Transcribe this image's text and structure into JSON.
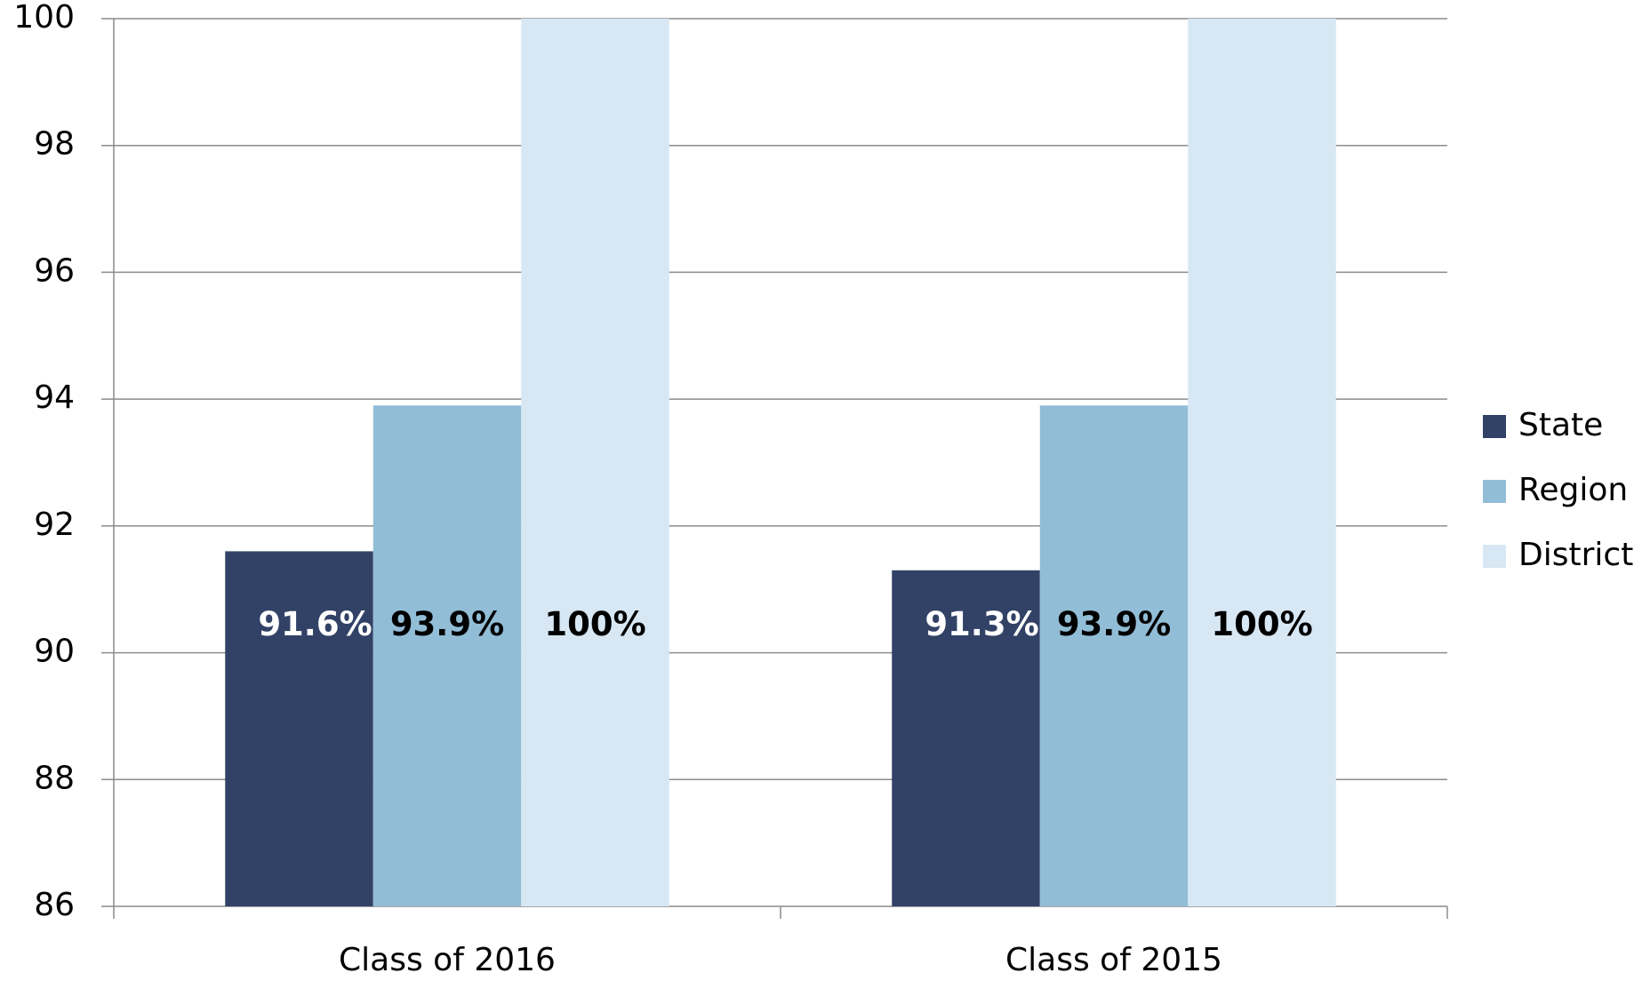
{
  "chart_data": {
    "type": "bar",
    "categories": [
      "Class of 2016",
      "Class of 2015"
    ],
    "series": [
      {
        "name": "State",
        "color": "#324266",
        "label_color": "#ffffff",
        "values": [
          91.6,
          91.3
        ],
        "value_labels": [
          "91.6%",
          "91.3%"
        ]
      },
      {
        "name": "Region",
        "color": "#92bdd6",
        "label_color": "#000000",
        "values": [
          93.9,
          93.9
        ],
        "value_labels": [
          "93.9%",
          "93.9%"
        ]
      },
      {
        "name": "District",
        "color": "#d7e7f4",
        "label_color": "#000000",
        "values": [
          100,
          100
        ],
        "value_labels": [
          "100%",
          "100%"
        ]
      }
    ],
    "ylim": [
      86,
      100
    ],
    "yticks": [
      86,
      88,
      90,
      92,
      94,
      96,
      98,
      100
    ],
    "grid": true,
    "legend": "right"
  }
}
